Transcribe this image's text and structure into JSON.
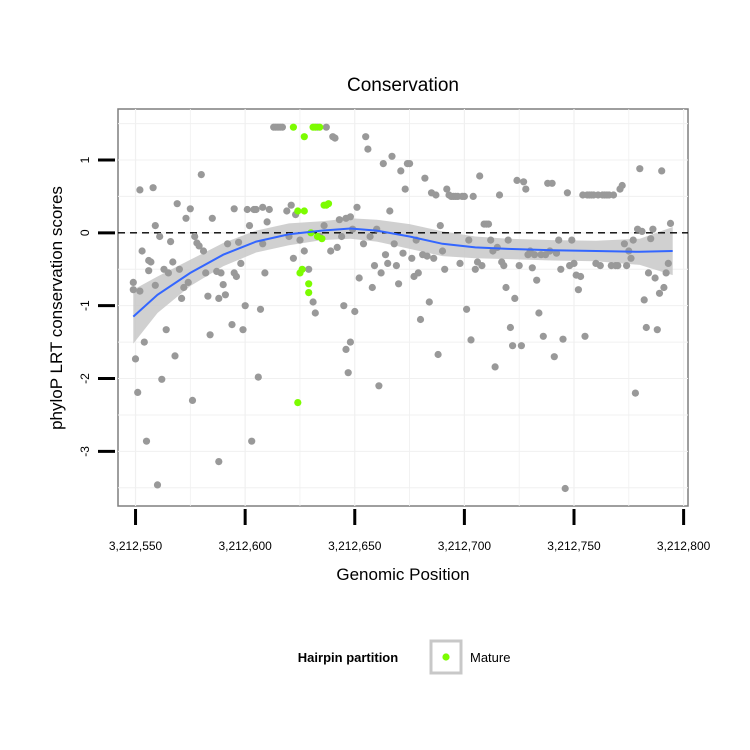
{
  "chart_data": {
    "type": "scatter",
    "title": "Conservation",
    "xlabel": "Genomic Position",
    "ylabel": "phyloP LRT conservation scores",
    "xlim": [
      3212542,
      3212802
    ],
    "ylim": [
      -3.75,
      1.7
    ],
    "x_ticks": [
      3212550,
      3212600,
      3212650,
      3212700,
      3212750,
      3212800
    ],
    "x_tick_labels": [
      "3,212,550",
      "3,212,600",
      "3,212,650",
      "3,212,700",
      "3,212,750",
      "3,212,800"
    ],
    "y_ticks": [
      -3,
      -2,
      -1,
      0,
      1
    ],
    "y_tick_labels": [
      "-3",
      "-2",
      "-1",
      "0",
      "1"
    ],
    "grid": true,
    "reference_line": {
      "y": 0,
      "style": "dashed"
    },
    "legend": {
      "title": "Hairpin partition",
      "placement": "bottom",
      "entries": [
        "Mature"
      ]
    },
    "colors": {
      "background_points": "#999999",
      "mature_points": "#7cfc00",
      "smooth_line": "#3366ff",
      "ribbon": "#c8c8c8"
    },
    "series": [
      {
        "name": "",
        "color": "#999999",
        "points": [
          [
            3212549,
            -0.68
          ],
          [
            3212549,
            -0.78
          ],
          [
            3212550,
            -1.73
          ],
          [
            3212551,
            -2.19
          ],
          [
            3212552,
            0.59
          ],
          [
            3212552,
            -0.8
          ],
          [
            3212553,
            -0.25
          ],
          [
            3212554,
            -1.5
          ],
          [
            3212555,
            -2.86
          ],
          [
            3212556,
            -0.38
          ],
          [
            3212556,
            -0.52
          ],
          [
            3212557,
            -0.4
          ],
          [
            3212558,
            0.62
          ],
          [
            3212559,
            0.1
          ],
          [
            3212559,
            -0.72
          ],
          [
            3212560,
            -3.46
          ],
          [
            3212561,
            -0.05
          ],
          [
            3212562,
            -2.01
          ],
          [
            3212563,
            -0.5
          ],
          [
            3212564,
            -1.33
          ],
          [
            3212565,
            -0.55
          ],
          [
            3212566,
            -0.12
          ],
          [
            3212567,
            -0.4
          ],
          [
            3212568,
            -1.69
          ],
          [
            3212569,
            0.4
          ],
          [
            3212570,
            -0.5
          ],
          [
            3212571,
            -0.9
          ],
          [
            3212572,
            -0.75
          ],
          [
            3212573,
            0.2
          ],
          [
            3212574,
            -0.68
          ],
          [
            3212575,
            0.33
          ],
          [
            3212576,
            -2.3
          ],
          [
            3212577,
            -0.05
          ],
          [
            3212578,
            -0.14
          ],
          [
            3212579,
            -0.18
          ],
          [
            3212580,
            0.8
          ],
          [
            3212581,
            -0.25
          ],
          [
            3212582,
            -0.55
          ],
          [
            3212583,
            -0.87
          ],
          [
            3212584,
            -1.4
          ],
          [
            3212585,
            0.2
          ],
          [
            3212587,
            -0.53
          ],
          [
            3212588,
            -3.14
          ],
          [
            3212588,
            -0.9
          ],
          [
            3212589,
            -0.55
          ],
          [
            3212590,
            -0.71
          ],
          [
            3212591,
            -0.85
          ],
          [
            3212592,
            -0.15
          ],
          [
            3212594,
            -1.26
          ],
          [
            3212595,
            0.33
          ],
          [
            3212595,
            -0.55
          ],
          [
            3212596,
            -0.6
          ],
          [
            3212597,
            -0.13
          ],
          [
            3212598,
            -0.42
          ],
          [
            3212599,
            -1.33
          ],
          [
            3212600,
            -1.0
          ],
          [
            3212601,
            0.32
          ],
          [
            3212602,
            0.1
          ],
          [
            3212603,
            -2.86
          ],
          [
            3212604,
            0.32
          ],
          [
            3212605,
            0.32
          ],
          [
            3212606,
            -1.98
          ],
          [
            3212607,
            -1.05
          ],
          [
            3212608,
            0.35
          ],
          [
            3212608,
            -0.15
          ],
          [
            3212609,
            -0.55
          ],
          [
            3212610,
            0.15
          ],
          [
            3212611,
            0.32
          ],
          [
            3212613,
            1.45
          ],
          [
            3212614,
            1.45
          ],
          [
            3212615,
            1.45
          ],
          [
            3212616,
            1.45
          ],
          [
            3212617,
            1.45
          ],
          [
            3212619,
            0.3
          ],
          [
            3212620,
            -0.05
          ],
          [
            3212621,
            0.38
          ],
          [
            3212622,
            -0.35
          ],
          [
            3212623,
            0.25
          ],
          [
            3212625,
            -0.1
          ],
          [
            3212627,
            -0.25
          ],
          [
            3212629,
            -0.5
          ],
          [
            3212631,
            -0.95
          ],
          [
            3212632,
            -1.1
          ],
          [
            3212633,
            1.45
          ],
          [
            3212634,
            -0.05
          ],
          [
            3212636,
            0.1
          ],
          [
            3212637,
            1.45
          ],
          [
            3212639,
            -0.25
          ],
          [
            3212640,
            1.32
          ],
          [
            3212641,
            1.3
          ],
          [
            3212642,
            -0.2
          ],
          [
            3212643,
            0.18
          ],
          [
            3212644,
            -0.05
          ],
          [
            3212645,
            -1.0
          ],
          [
            3212646,
            0.2
          ],
          [
            3212646,
            -1.6
          ],
          [
            3212647,
            -1.92
          ],
          [
            3212648,
            0.22
          ],
          [
            3212648,
            -1.5
          ],
          [
            3212649,
            0.05
          ],
          [
            3212650,
            -1.08
          ],
          [
            3212651,
            0.35
          ],
          [
            3212652,
            -0.62
          ],
          [
            3212654,
            -0.15
          ],
          [
            3212655,
            1.32
          ],
          [
            3212656,
            1.15
          ],
          [
            3212657,
            -0.05
          ],
          [
            3212658,
            -0.75
          ],
          [
            3212659,
            -0.45
          ],
          [
            3212660,
            0.05
          ],
          [
            3212661,
            -2.1
          ],
          [
            3212662,
            -0.55
          ],
          [
            3212663,
            0.95
          ],
          [
            3212664,
            -0.3
          ],
          [
            3212665,
            -0.42
          ],
          [
            3212666,
            0.3
          ],
          [
            3212667,
            1.05
          ],
          [
            3212668,
            -0.15
          ],
          [
            3212669,
            -0.45
          ],
          [
            3212670,
            -0.7
          ],
          [
            3212671,
            0.85
          ],
          [
            3212672,
            -0.28
          ],
          [
            3212673,
            0.6
          ],
          [
            3212674,
            0.95
          ],
          [
            3212675,
            0.95
          ],
          [
            3212676,
            -0.35
          ],
          [
            3212677,
            -0.6
          ],
          [
            3212678,
            -0.1
          ],
          [
            3212679,
            -0.55
          ],
          [
            3212680,
            -1.19
          ],
          [
            3212681,
            -0.3
          ],
          [
            3212682,
            0.75
          ],
          [
            3212683,
            -0.32
          ],
          [
            3212684,
            -0.95
          ],
          [
            3212685,
            0.55
          ],
          [
            3212686,
            -0.35
          ],
          [
            3212687,
            0.52
          ],
          [
            3212688,
            -1.67
          ],
          [
            3212689,
            0.1
          ],
          [
            3212690,
            -0.25
          ],
          [
            3212691,
            -0.5
          ],
          [
            3212692,
            0.6
          ],
          [
            3212693,
            0.52
          ],
          [
            3212694,
            0.5
          ],
          [
            3212695,
            0.5
          ],
          [
            3212696,
            0.5
          ],
          [
            3212697,
            0.5
          ],
          [
            3212698,
            -0.42
          ],
          [
            3212699,
            0.5
          ],
          [
            3212700,
            0.5
          ],
          [
            3212701,
            -1.05
          ],
          [
            3212702,
            -0.1
          ],
          [
            3212703,
            -1.47
          ],
          [
            3212704,
            0.5
          ],
          [
            3212705,
            -0.5
          ],
          [
            3212706,
            -0.4
          ],
          [
            3212707,
            0.78
          ],
          [
            3212708,
            -0.45
          ],
          [
            3212709,
            0.12
          ],
          [
            3212710,
            0.12
          ],
          [
            3212711,
            0.12
          ],
          [
            3212712,
            -0.1
          ],
          [
            3212713,
            -0.25
          ],
          [
            3212714,
            -1.84
          ],
          [
            3212715,
            -0.2
          ],
          [
            3212716,
            0.52
          ],
          [
            3212717,
            -0.4
          ],
          [
            3212718,
            -0.45
          ],
          [
            3212719,
            -0.75
          ],
          [
            3212720,
            -0.1
          ],
          [
            3212721,
            -1.3
          ],
          [
            3212722,
            -1.55
          ],
          [
            3212723,
            -0.9
          ],
          [
            3212724,
            0.72
          ],
          [
            3212725,
            -0.45
          ],
          [
            3212726,
            -1.55
          ],
          [
            3212727,
            0.7
          ],
          [
            3212728,
            0.6
          ],
          [
            3212729,
            -0.3
          ],
          [
            3212730,
            -0.25
          ],
          [
            3212731,
            -0.48
          ],
          [
            3212732,
            -0.3
          ],
          [
            3212733,
            -0.65
          ],
          [
            3212734,
            -1.1
          ],
          [
            3212735,
            -0.3
          ],
          [
            3212736,
            -1.42
          ],
          [
            3212737,
            -0.3
          ],
          [
            3212738,
            0.68
          ],
          [
            3212739,
            -0.25
          ],
          [
            3212740,
            0.68
          ],
          [
            3212741,
            -1.7
          ],
          [
            3212742,
            -0.28
          ],
          [
            3212743,
            -0.1
          ],
          [
            3212744,
            -0.5
          ],
          [
            3212745,
            -1.46
          ],
          [
            3212746,
            -3.51
          ],
          [
            3212747,
            0.55
          ],
          [
            3212748,
            -0.45
          ],
          [
            3212749,
            -0.1
          ],
          [
            3212750,
            -0.42
          ],
          [
            3212751,
            -0.58
          ],
          [
            3212752,
            -0.78
          ],
          [
            3212753,
            -0.6
          ],
          [
            3212754,
            0.52
          ],
          [
            3212755,
            -1.42
          ],
          [
            3212756,
            0.52
          ],
          [
            3212757,
            0.52
          ],
          [
            3212758,
            0.52
          ],
          [
            3212759,
            0.52
          ],
          [
            3212760,
            -0.42
          ],
          [
            3212761,
            0.52
          ],
          [
            3212762,
            -0.45
          ],
          [
            3212763,
            0.52
          ],
          [
            3212764,
            0.52
          ],
          [
            3212765,
            0.52
          ],
          [
            3212766,
            0.52
          ],
          [
            3212767,
            -0.45
          ],
          [
            3212768,
            0.52
          ],
          [
            3212769,
            -0.45
          ],
          [
            3212770,
            -0.45
          ],
          [
            3212771,
            0.6
          ],
          [
            3212772,
            0.65
          ],
          [
            3212773,
            -0.15
          ],
          [
            3212774,
            -0.45
          ],
          [
            3212775,
            -0.25
          ],
          [
            3212776,
            -0.35
          ],
          [
            3212777,
            -0.1
          ],
          [
            3212778,
            -2.2
          ],
          [
            3212779,
            0.05
          ],
          [
            3212780,
            0.88
          ],
          [
            3212781,
            0.02
          ],
          [
            3212782,
            -0.92
          ],
          [
            3212783,
            -1.3
          ],
          [
            3212784,
            -0.55
          ],
          [
            3212785,
            -0.08
          ],
          [
            3212786,
            0.05
          ],
          [
            3212787,
            -0.62
          ],
          [
            3212788,
            -1.33
          ],
          [
            3212789,
            -0.83
          ],
          [
            3212790,
            0.85
          ],
          [
            3212791,
            -0.75
          ],
          [
            3212792,
            -0.55
          ],
          [
            3212793,
            -0.42
          ],
          [
            3212794,
            0.13
          ]
        ]
      },
      {
        "name": "Mature",
        "color": "#7cfc00",
        "points": [
          [
            3212622,
            1.45
          ],
          [
            3212624,
            0.3
          ],
          [
            3212624,
            -2.33
          ],
          [
            3212625,
            -0.55
          ],
          [
            3212626,
            -0.5
          ],
          [
            3212627,
            0.3
          ],
          [
            3212627,
            1.32
          ],
          [
            3212629,
            -0.7
          ],
          [
            3212629,
            -0.82
          ],
          [
            3212630,
            0.0
          ],
          [
            3212631,
            1.45
          ],
          [
            3212632,
            1.45
          ],
          [
            3212633,
            -0.05
          ],
          [
            3212634,
            1.45
          ],
          [
            3212635,
            -0.08
          ],
          [
            3212636,
            0.38
          ],
          [
            3212637,
            0.38
          ],
          [
            3212638,
            0.4
          ]
        ]
      }
    ],
    "smooth": {
      "x": [
        3212549,
        3212560,
        3212575,
        3212590,
        3212605,
        3212620,
        3212635,
        3212648,
        3212660,
        3212675,
        3212690,
        3212705,
        3212720,
        3212740,
        3212760,
        3212780,
        3212795
      ],
      "y": [
        -1.15,
        -0.85,
        -0.55,
        -0.3,
        -0.12,
        -0.02,
        0.03,
        0.06,
        0.03,
        -0.05,
        -0.15,
        -0.2,
        -0.22,
        -0.24,
        -0.25,
        -0.26,
        -0.25
      ],
      "lower": [
        -1.52,
        -1.1,
        -0.73,
        -0.46,
        -0.27,
        -0.17,
        -0.1,
        -0.08,
        -0.12,
        -0.22,
        -0.32,
        -0.35,
        -0.36,
        -0.38,
        -0.39,
        -0.44,
        -0.58
      ],
      "upper": [
        -0.78,
        -0.6,
        -0.37,
        -0.14,
        0.03,
        0.13,
        0.16,
        0.2,
        0.18,
        0.12,
        0.02,
        -0.05,
        -0.08,
        -0.1,
        -0.11,
        -0.08,
        0.08
      ]
    }
  }
}
